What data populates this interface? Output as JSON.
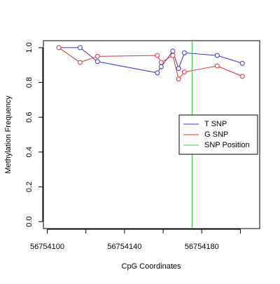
{
  "chart_data": {
    "type": "line",
    "x_label": "CpG Coordinates",
    "y_label": "Methylation Frequency",
    "x": [
      56754106,
      56754117,
      56754126,
      56754157,
      56754159,
      56754165,
      56754168,
      56754171,
      56754188,
      56754201
    ],
    "series": [
      {
        "name": "T SNP",
        "color": "#3333cc",
        "values": [
          1.0,
          1.0,
          0.92,
          0.855,
          0.89,
          0.98,
          0.88,
          0.97,
          0.955,
          0.91
        ]
      },
      {
        "name": "G SNP",
        "color": "#e03333",
        "values": [
          1.0,
          0.915,
          0.95,
          0.955,
          0.915,
          0.955,
          0.82,
          0.86,
          0.895,
          0.835
        ]
      }
    ],
    "vline": {
      "name": "SNP Position",
      "color": "#33cc33",
      "x": 56754175
    },
    "xlim": [
      56754098,
      56754210
    ],
    "ylim": [
      -0.04,
      1.04
    ],
    "xticks": [
      56754100,
      56754140,
      56754180
    ],
    "xticks_unlabeled": [
      56754120,
      56754160,
      56754200
    ],
    "yticks": [
      {
        "value": 0,
        "label": "0.0"
      },
      {
        "value": 0.2,
        "label": "0.2"
      },
      {
        "value": 0.4,
        "label": "0.4"
      },
      {
        "value": 0.6,
        "label": "0.6"
      },
      {
        "value": 0.8,
        "label": "0.8"
      },
      {
        "value": 1,
        "label": "1.0"
      }
    ],
    "legend": "right"
  }
}
